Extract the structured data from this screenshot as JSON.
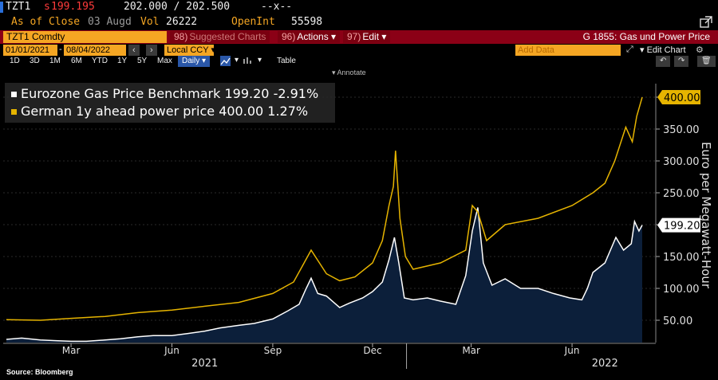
{
  "header": {
    "ticker": "TZT1",
    "last_price_prefix": "s",
    "last_price": "199.195",
    "bid_ask": "202.000 / 202.500",
    "change": "--x--",
    "as_of_label": "As of Close",
    "as_of_date": "03 Augd",
    "vol_label": "Vol",
    "vol": "26222",
    "openint_label": "OpenInt",
    "openint": "55598"
  },
  "toolbar": {
    "security": "TZT1 Comdty",
    "suggested_num": "98)",
    "suggested_label": "Suggested Charts",
    "actions_num": "96)",
    "actions_label": "Actions",
    "edit_num": "97)",
    "edit_label": "Edit",
    "chart_title": "G 1855: Gas und Power Price"
  },
  "range_bar": {
    "start_date": "01/01/2021",
    "end_date": "08/04/2022",
    "currency": "Local CCY",
    "add_data_placeholder": "Add Data",
    "edit_chart_label": "Edit Chart"
  },
  "periods": [
    "1D",
    "3D",
    "1M",
    "6M",
    "YTD",
    "1Y",
    "5Y",
    "Max"
  ],
  "frequency": "Daily",
  "table_label": "Table",
  "annotate_label": "Annotate",
  "source": "Source: Bloomberg",
  "colors": {
    "white_series": "#ffffff",
    "gold_series": "#e6b400",
    "area_fill": "#0c1f3a",
    "bbg_red": "#8b0016",
    "bbg_orange": "#f5a623"
  },
  "chart_data": {
    "type": "line",
    "ylabel": "Euro per Megawatt-Hour",
    "ylim": [
      15,
      420
    ],
    "yticks": [
      50,
      100,
      150,
      200,
      250,
      300,
      350,
      400
    ],
    "ytick_labels": [
      "50.00",
      "100.00",
      "150.00",
      "200.00",
      "250.00",
      "300.00",
      "350.00",
      "400.00"
    ],
    "x_month_ticks": [
      "Mar",
      "Jun",
      "Sep",
      "Dec",
      "Mar",
      "Jun"
    ],
    "x_year_labels": [
      "2021",
      "2022"
    ],
    "x_tick_dates": [
      "2021-03-01",
      "2021-06-01",
      "2021-09-01",
      "2021-12-01",
      "2022-03-01",
      "2022-06-01"
    ],
    "x_year_dates": [
      "2021-07-01",
      "2022-07-01"
    ],
    "x_range": [
      "2021-01-01",
      "2022-08-04"
    ],
    "series": [
      {
        "name": "Eurozone Gas Price Benchmark",
        "last_value": "199.20",
        "change_pct": "-2.91%",
        "style": "area",
        "points": [
          [
            "2021-01-01",
            20
          ],
          [
            "2021-01-15",
            22
          ],
          [
            "2021-02-01",
            19
          ],
          [
            "2021-02-15",
            18
          ],
          [
            "2021-03-01",
            17
          ],
          [
            "2021-03-15",
            17
          ],
          [
            "2021-04-01",
            19
          ],
          [
            "2021-04-15",
            21
          ],
          [
            "2021-05-01",
            24
          ],
          [
            "2021-05-15",
            26
          ],
          [
            "2021-06-01",
            26
          ],
          [
            "2021-06-15",
            29
          ],
          [
            "2021-07-01",
            33
          ],
          [
            "2021-07-15",
            38
          ],
          [
            "2021-08-01",
            42
          ],
          [
            "2021-08-15",
            45
          ],
          [
            "2021-09-01",
            52
          ],
          [
            "2021-09-15",
            65
          ],
          [
            "2021-09-25",
            75
          ],
          [
            "2021-10-01",
            98
          ],
          [
            "2021-10-06",
            116
          ],
          [
            "2021-10-12",
            92
          ],
          [
            "2021-10-20",
            88
          ],
          [
            "2021-11-01",
            70
          ],
          [
            "2021-11-10",
            77
          ],
          [
            "2021-11-22",
            85
          ],
          [
            "2021-12-01",
            95
          ],
          [
            "2021-12-10",
            110
          ],
          [
            "2021-12-16",
            145
          ],
          [
            "2021-12-21",
            180
          ],
          [
            "2021-12-25",
            140
          ],
          [
            "2021-12-30",
            85
          ],
          [
            "2022-01-07",
            82
          ],
          [
            "2022-01-20",
            85
          ],
          [
            "2022-02-01",
            80
          ],
          [
            "2022-02-15",
            75
          ],
          [
            "2022-02-24",
            120
          ],
          [
            "2022-03-02",
            190
          ],
          [
            "2022-03-07",
            227
          ],
          [
            "2022-03-12",
            140
          ],
          [
            "2022-03-20",
            105
          ],
          [
            "2022-04-01",
            115
          ],
          [
            "2022-04-15",
            100
          ],
          [
            "2022-05-01",
            100
          ],
          [
            "2022-05-15",
            92
          ],
          [
            "2022-05-30",
            85
          ],
          [
            "2022-06-10",
            82
          ],
          [
            "2022-06-15",
            100
          ],
          [
            "2022-06-20",
            125
          ],
          [
            "2022-07-01",
            140
          ],
          [
            "2022-07-11",
            180
          ],
          [
            "2022-07-18",
            160
          ],
          [
            "2022-07-25",
            170
          ],
          [
            "2022-07-28",
            205
          ],
          [
            "2022-08-01",
            190
          ],
          [
            "2022-08-04",
            199.2
          ]
        ]
      },
      {
        "name": "German 1y ahead power price",
        "last_value": "400.00",
        "change_pct": "1.27%",
        "style": "line",
        "points": [
          [
            "2021-01-01",
            51
          ],
          [
            "2021-02-01",
            50
          ],
          [
            "2021-03-01",
            53
          ],
          [
            "2021-04-01",
            56
          ],
          [
            "2021-05-01",
            62
          ],
          [
            "2021-06-01",
            66
          ],
          [
            "2021-07-01",
            72
          ],
          [
            "2021-08-01",
            78
          ],
          [
            "2021-09-01",
            92
          ],
          [
            "2021-09-20",
            110
          ],
          [
            "2021-10-06",
            160
          ],
          [
            "2021-10-20",
            123
          ],
          [
            "2021-11-01",
            112
          ],
          [
            "2021-11-15",
            118
          ],
          [
            "2021-12-01",
            140
          ],
          [
            "2021-12-10",
            175
          ],
          [
            "2021-12-16",
            230
          ],
          [
            "2021-12-20",
            260
          ],
          [
            "2021-12-22",
            316
          ],
          [
            "2021-12-26",
            210
          ],
          [
            "2021-12-31",
            150
          ],
          [
            "2022-01-07",
            130
          ],
          [
            "2022-02-01",
            140
          ],
          [
            "2022-02-24",
            160
          ],
          [
            "2022-03-02",
            230
          ],
          [
            "2022-03-07",
            220
          ],
          [
            "2022-03-15",
            175
          ],
          [
            "2022-04-01",
            200
          ],
          [
            "2022-05-01",
            210
          ],
          [
            "2022-06-01",
            230
          ],
          [
            "2022-06-20",
            250
          ],
          [
            "2022-07-01",
            265
          ],
          [
            "2022-07-10",
            300
          ],
          [
            "2022-07-20",
            353
          ],
          [
            "2022-07-26",
            330
          ],
          [
            "2022-07-30",
            370
          ],
          [
            "2022-08-04",
            400
          ]
        ]
      }
    ]
  }
}
